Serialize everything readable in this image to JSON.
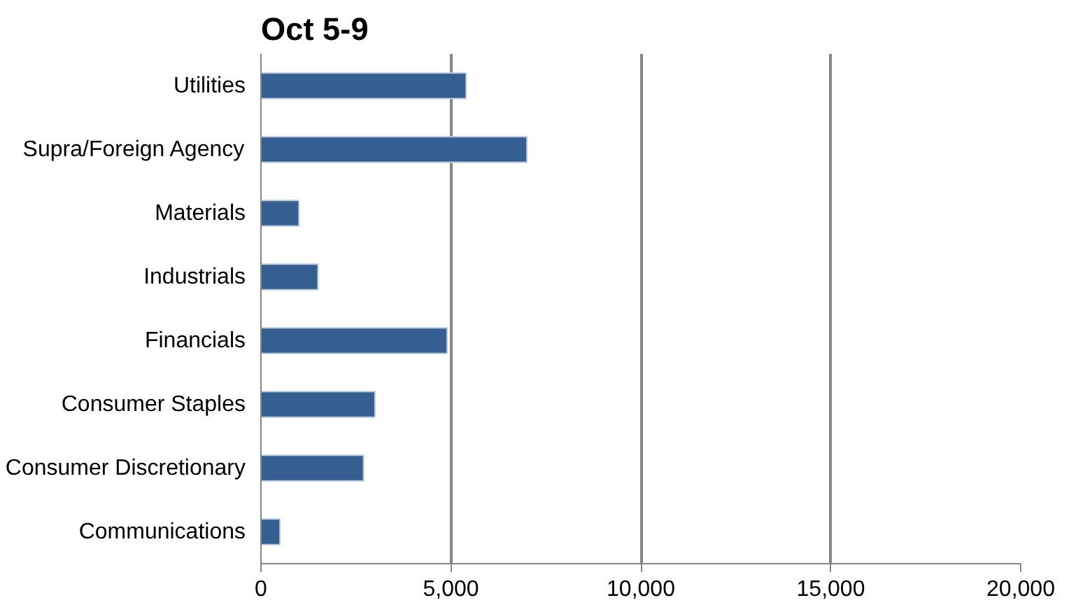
{
  "chart_data": {
    "type": "bar",
    "orientation": "horizontal",
    "title": "Oct 5-9",
    "categories": [
      "Utilities",
      "Supra/Foreign Agency",
      "Materials",
      "Industrials",
      "Financials",
      "Consumer Staples",
      "Consumer Discretionary",
      "Communications"
    ],
    "values": [
      5400,
      7000,
      1000,
      1500,
      4900,
      3000,
      2700,
      500
    ],
    "color": "#355f91",
    "xlim": [
      0,
      20000
    ],
    "xticks": [
      {
        "value": 0,
        "label": "0"
      },
      {
        "value": 5000,
        "label": "5,000"
      },
      {
        "value": 10000,
        "label": "10,000"
      },
      {
        "value": 15000,
        "label": "15,000"
      },
      {
        "value": 20000,
        "label": "20,000"
      }
    ],
    "grid": "x"
  }
}
